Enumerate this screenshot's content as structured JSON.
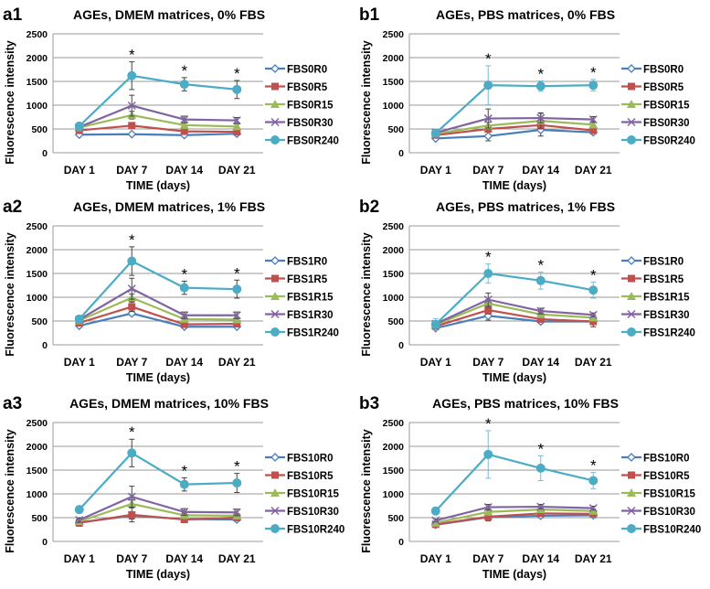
{
  "chart_data": [
    {
      "type": "line",
      "panel_label": "a1",
      "title": "AGEs, DMEM matrices, 0% FBS",
      "xlabel": "TIME (days)",
      "ylabel": "Fluorescence intensity",
      "categories": [
        "DAY 1",
        "DAY 7",
        "DAY 14",
        "DAY 21"
      ],
      "ylim": [
        0,
        2500
      ],
      "yticks": [
        "0",
        "500",
        "1000",
        "1500",
        "2000",
        "2500"
      ],
      "significance": [
        "",
        "*",
        "*",
        "*"
      ],
      "series": [
        {
          "name": "FBS0R0",
          "values": [
            380,
            390,
            370,
            400
          ],
          "err": [
            20,
            30,
            20,
            30
          ]
        },
        {
          "name": "FBS0R5",
          "values": [
            470,
            570,
            450,
            440
          ],
          "err": [
            30,
            60,
            40,
            40
          ]
        },
        {
          "name": "FBS0R15",
          "values": [
            530,
            790,
            580,
            550
          ],
          "err": [
            40,
            80,
            50,
            50
          ]
        },
        {
          "name": "FBS0R30",
          "values": [
            540,
            990,
            700,
            680
          ],
          "err": [
            50,
            220,
            70,
            60
          ]
        },
        {
          "name": "FBS0R240",
          "values": [
            560,
            1620,
            1440,
            1330
          ],
          "err": [
            60,
            290,
            140,
            190
          ]
        }
      ]
    },
    {
      "type": "line",
      "panel_label": "b1",
      "title": "AGEs, PBS matrices, 0% FBS",
      "xlabel": "TIME (days)",
      "ylabel": "Fluorescence intensity",
      "categories": [
        "DAY 1",
        "DAY 7",
        "DAY 14",
        "DAY 21"
      ],
      "ylim": [
        0,
        2500
      ],
      "yticks": [
        "0",
        "500",
        "1000",
        "1500",
        "2000",
        "2500"
      ],
      "significance": [
        "",
        "*",
        "*",
        "*"
      ],
      "series": [
        {
          "name": "FBS0R0",
          "values": [
            300,
            350,
            480,
            430
          ],
          "err": [
            20,
            100,
            130,
            30
          ]
        },
        {
          "name": "FBS0R5",
          "values": [
            370,
            500,
            580,
            470
          ],
          "err": [
            30,
            60,
            60,
            40
          ]
        },
        {
          "name": "FBS0R15",
          "values": [
            400,
            570,
            670,
            590
          ],
          "err": [
            30,
            70,
            170,
            60
          ]
        },
        {
          "name": "FBS0R30",
          "values": [
            420,
            720,
            730,
            700
          ],
          "err": [
            30,
            200,
            100,
            60
          ]
        },
        {
          "name": "FBS0R240",
          "values": [
            410,
            1420,
            1400,
            1420
          ],
          "err": [
            40,
            410,
            110,
            120
          ]
        }
      ]
    },
    {
      "type": "line",
      "panel_label": "a2",
      "title": "AGEs, DMEM matrices, 1% FBS",
      "xlabel": "TIME (days)",
      "ylabel": "Fluorescence intensity",
      "categories": [
        "DAY 1",
        "DAY 7",
        "DAY 14",
        "DAY 21"
      ],
      "ylim": [
        0,
        2500
      ],
      "yticks": [
        "0",
        "500",
        "1000",
        "1500",
        "2000",
        "2500"
      ],
      "significance": [
        "",
        "*",
        "*",
        "*"
      ],
      "series": [
        {
          "name": "FBS1R0",
          "values": [
            400,
            660,
            380,
            380
          ],
          "err": [
            30,
            40,
            20,
            20
          ]
        },
        {
          "name": "FBS1R5",
          "values": [
            460,
            800,
            430,
            440
          ],
          "err": [
            30,
            100,
            40,
            40
          ]
        },
        {
          "name": "FBS1R15",
          "values": [
            510,
            990,
            540,
            530
          ],
          "err": [
            40,
            80,
            50,
            50
          ]
        },
        {
          "name": "FBS1R30",
          "values": [
            530,
            1180,
            620,
            620
          ],
          "err": [
            40,
            220,
            70,
            70
          ]
        },
        {
          "name": "FBS1R240",
          "values": [
            540,
            1760,
            1200,
            1170
          ],
          "err": [
            50,
            300,
            140,
            190
          ]
        }
      ]
    },
    {
      "type": "line",
      "panel_label": "b2",
      "title": "AGEs, PBS matrices, 1% FBS",
      "xlabel": "TIME (days)",
      "ylabel": "Fluorescence intensity",
      "categories": [
        "DAY 1",
        "DAY 7",
        "DAY 14",
        "DAY 21"
      ],
      "ylim": [
        0,
        2500
      ],
      "yticks": [
        "0",
        "500",
        "1000",
        "1500",
        "2000",
        "2500"
      ],
      "significance": [
        "",
        "*",
        "*",
        "*"
      ],
      "series": [
        {
          "name": "FBS1R0",
          "values": [
            350,
            610,
            490,
            490
          ],
          "err": [
            30,
            90,
            40,
            30
          ]
        },
        {
          "name": "FBS1R5",
          "values": [
            390,
            730,
            540,
            490
          ],
          "err": [
            30,
            80,
            50,
            110
          ]
        },
        {
          "name": "FBS1R15",
          "values": [
            420,
            870,
            640,
            570
          ],
          "err": [
            40,
            80,
            60,
            60
          ]
        },
        {
          "name": "FBS1R30",
          "values": [
            440,
            950,
            710,
            630
          ],
          "err": [
            40,
            140,
            60,
            40
          ]
        },
        {
          "name": "FBS1R240",
          "values": [
            430,
            1500,
            1350,
            1150
          ],
          "err": [
            120,
            200,
            180,
            170
          ]
        }
      ]
    },
    {
      "type": "line",
      "panel_label": "a3",
      "title": "AGEs, DMEM matrices, 10% FBS",
      "xlabel": "TIME (days)",
      "ylabel": "Fluorescence intensity",
      "categories": [
        "DAY 1",
        "DAY 7",
        "DAY 14",
        "DAY 21"
      ],
      "ylim": [
        0,
        2500
      ],
      "yticks": [
        "0",
        "500",
        "1000",
        "1500",
        "2000",
        "2500"
      ],
      "significance": [
        "",
        "*",
        "*",
        "*"
      ],
      "series": [
        {
          "name": "FBS10R0",
          "values": [
            400,
            540,
            470,
            460
          ],
          "err": [
            80,
            70,
            30,
            30
          ]
        },
        {
          "name": "FBS10R5",
          "values": [
            390,
            560,
            460,
            500
          ],
          "err": [
            40,
            150,
            40,
            40
          ]
        },
        {
          "name": "FBS10R15",
          "values": [
            420,
            790,
            550,
            540
          ],
          "err": [
            40,
            80,
            50,
            50
          ]
        },
        {
          "name": "FBS10R30",
          "values": [
            450,
            940,
            620,
            610
          ],
          "err": [
            50,
            220,
            70,
            70
          ]
        },
        {
          "name": "FBS10R240",
          "values": [
            670,
            1860,
            1200,
            1230
          ],
          "err": [
            60,
            290,
            140,
            200
          ]
        }
      ]
    },
    {
      "type": "line",
      "panel_label": "b3",
      "title": "AGEs, PBS matrices, 10% FBS",
      "xlabel": "TIME (days)",
      "ylabel": "Fluorescence intensity",
      "categories": [
        "DAY 1",
        "DAY 7",
        "DAY 14",
        "DAY 21"
      ],
      "ylim": [
        0,
        2500
      ],
      "yticks": [
        "0",
        "500",
        "1000",
        "1500",
        "2000",
        "2500"
      ],
      "significance": [
        "",
        "*",
        "*",
        "*"
      ],
      "series": [
        {
          "name": "FBS10R0",
          "values": [
            350,
            510,
            540,
            550
          ],
          "err": [
            20,
            80,
            40,
            30
          ]
        },
        {
          "name": "FBS10R5",
          "values": [
            360,
            520,
            590,
            580
          ],
          "err": [
            20,
            40,
            40,
            30
          ]
        },
        {
          "name": "FBS10R15",
          "values": [
            390,
            620,
            670,
            640
          ],
          "err": [
            30,
            50,
            40,
            40
          ]
        },
        {
          "name": "FBS10R30",
          "values": [
            440,
            720,
            730,
            700
          ],
          "err": [
            30,
            60,
            50,
            40
          ]
        },
        {
          "name": "FBS10R240",
          "values": [
            640,
            1830,
            1540,
            1280
          ],
          "err": [
            0,
            500,
            260,
            170
          ]
        }
      ]
    }
  ],
  "series_colors": [
    "#4a7ebb",
    "#c0504d",
    "#9bbb59",
    "#8064a2",
    "#4bacc6"
  ],
  "markers": [
    "open-diamond",
    "square",
    "triangle",
    "x",
    "circle"
  ]
}
